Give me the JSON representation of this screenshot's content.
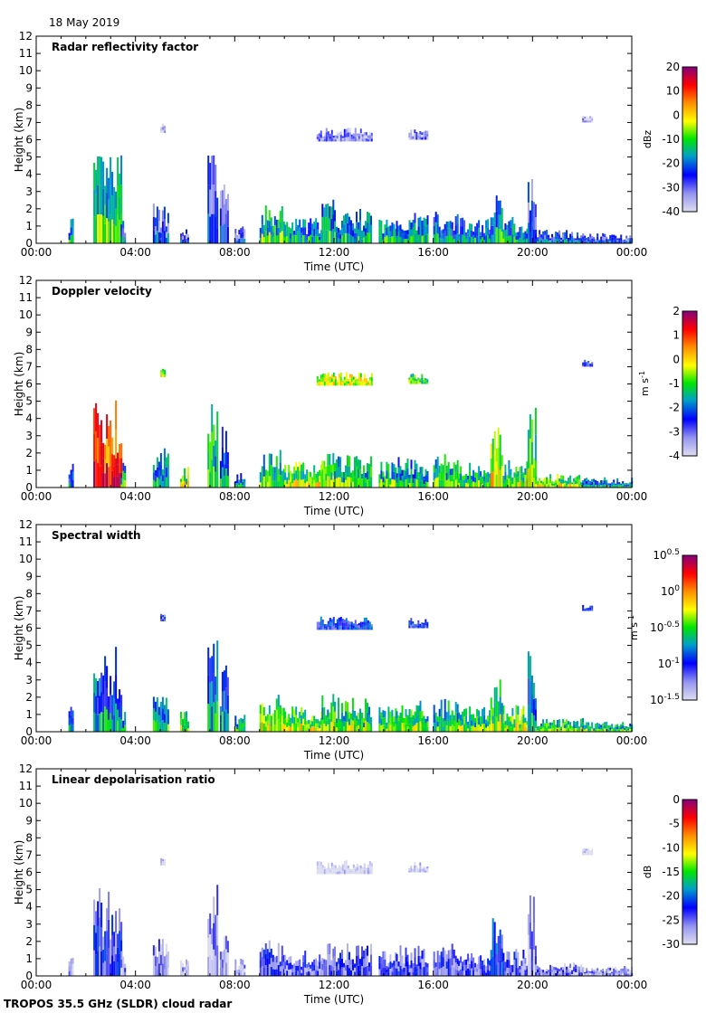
{
  "date_label": "18 May 2019",
  "footer": "TROPOS 35.5 GHz (SLDR) cloud radar",
  "chart_data": [
    {
      "type": "heatmap",
      "title": "Radar reflectivity factor",
      "xlabel": "Time (UTC)",
      "ylabel": "Height (km)",
      "xlim": [
        "00:00",
        "24:00"
      ],
      "ylim": [
        0,
        12
      ],
      "x_ticks": [
        "00:00",
        "04:00",
        "08:00",
        "12:00",
        "16:00",
        "20:00",
        "00:00"
      ],
      "y_ticks": [
        "0",
        "1",
        "2",
        "3",
        "4",
        "5",
        "6",
        "7",
        "8",
        "9",
        "10",
        "11",
        "12"
      ],
      "colorbar": {
        "unit": "dBz",
        "range": [
          -40,
          20
        ],
        "ticks": [
          "20",
          "10",
          "0",
          "-10",
          "-20",
          "-30",
          "-40"
        ]
      }
    },
    {
      "type": "heatmap",
      "title": "Doppler velocity",
      "xlabel": "Time (UTC)",
      "ylabel": "Height (km)",
      "xlim": [
        "00:00",
        "24:00"
      ],
      "ylim": [
        0,
        12
      ],
      "x_ticks": [
        "00:00",
        "04:00",
        "08:00",
        "12:00",
        "16:00",
        "20:00",
        "00:00"
      ],
      "y_ticks": [
        "0",
        "1",
        "2",
        "3",
        "4",
        "5",
        "6",
        "7",
        "8",
        "9",
        "10",
        "11",
        "12"
      ],
      "colorbar": {
        "unit": "m s-1",
        "range": [
          -4,
          2
        ],
        "ticks": [
          "2",
          "1",
          "0",
          "-1",
          "-2",
          "-3",
          "-4"
        ]
      }
    },
    {
      "type": "heatmap",
      "title": "Spectral width",
      "xlabel": "Time (UTC)",
      "ylabel": "Height (km)",
      "xlim": [
        "00:00",
        "24:00"
      ],
      "ylim": [
        0,
        12
      ],
      "x_ticks": [
        "00:00",
        "04:00",
        "08:00",
        "12:00",
        "16:00",
        "20:00",
        "00:00"
      ],
      "y_ticks": [
        "0",
        "1",
        "2",
        "3",
        "4",
        "5",
        "6",
        "7",
        "8",
        "9",
        "10",
        "11",
        "12"
      ],
      "colorbar": {
        "unit": "m s-1",
        "scale": "log",
        "range": [
          -1.5,
          0.5
        ],
        "ticks": [
          "10^0.5",
          "10^0",
          "10^-0.5",
          "10^-1",
          "10^-1.5"
        ]
      }
    },
    {
      "type": "heatmap",
      "title": "Linear depolarisation ratio",
      "xlabel": "Time (UTC)",
      "ylabel": "Height (km)",
      "xlim": [
        "00:00",
        "24:00"
      ],
      "ylim": [
        0,
        12
      ],
      "x_ticks": [
        "00:00",
        "04:00",
        "08:00",
        "12:00",
        "16:00",
        "20:00",
        "00:00"
      ],
      "y_ticks": [
        "0",
        "1",
        "2",
        "3",
        "4",
        "5",
        "6",
        "7",
        "8",
        "9",
        "10",
        "11",
        "12"
      ],
      "colorbar": {
        "unit": "dB",
        "range": [
          -30,
          0
        ],
        "ticks": [
          "0",
          "-5",
          "-10",
          "-15",
          "-20",
          "-25",
          "-30"
        ]
      }
    }
  ],
  "echo_regions": [
    {
      "start_h": 1.3,
      "end_h": 1.5,
      "base_km": 0,
      "top_km": 1.7,
      "values": [
        -20,
        -2.5,
        -1.0,
        -28
      ]
    },
    {
      "start_h": 2.3,
      "end_h": 3.4,
      "base_km": 0,
      "top_km": 5.3,
      "values": [
        -15,
        0.8,
        -0.9,
        -24
      ]
    },
    {
      "start_h": 3.4,
      "end_h": 3.6,
      "base_km": 0,
      "top_km": 1.5,
      "values": [
        -25,
        -1.5,
        -0.8,
        -27
      ]
    },
    {
      "start_h": 4.7,
      "end_h": 5.3,
      "base_km": 0,
      "top_km": 2.3,
      "values": [
        -28,
        -2.0,
        -0.8,
        -27
      ]
    },
    {
      "start_h": 5.8,
      "end_h": 6.1,
      "base_km": 0,
      "top_km": 1.2,
      "values": [
        -30,
        -1.0,
        -0.6,
        -28
      ]
    },
    {
      "start_h": 6.9,
      "end_h": 7.3,
      "base_km": 0,
      "top_km": 5.5,
      "values": [
        -30,
        -1.5,
        -0.9,
        -27
      ]
    },
    {
      "start_h": 7.4,
      "end_h": 7.7,
      "base_km": 0,
      "top_km": 4.0,
      "values": [
        -32,
        -2.0,
        -0.9,
        -28
      ]
    },
    {
      "start_h": 8.0,
      "end_h": 8.4,
      "base_km": 0,
      "top_km": 1.0,
      "values": [
        -30,
        -2.0,
        -0.7,
        -28
      ]
    },
    {
      "start_h": 9.0,
      "end_h": 10.0,
      "base_km": 0,
      "top_km": 2.2,
      "values": [
        -15,
        -1.5,
        -0.5,
        -25
      ]
    },
    {
      "start_h": 10.0,
      "end_h": 11.5,
      "base_km": 0,
      "top_km": 1.5,
      "values": [
        -20,
        -1.0,
        -0.5,
        -25
      ]
    },
    {
      "start_h": 11.5,
      "end_h": 12.0,
      "base_km": 0,
      "top_km": 2.6,
      "values": [
        -18,
        -1.2,
        -0.6,
        -25
      ]
    },
    {
      "start_h": 12.0,
      "end_h": 13.5,
      "base_km": 0,
      "top_km": 2.0,
      "values": [
        -20,
        -1.5,
        -0.6,
        -25
      ]
    },
    {
      "start_h": 13.8,
      "end_h": 14.5,
      "base_km": 0,
      "top_km": 1.5,
      "values": [
        -18,
        -1.5,
        -0.6,
        -25
      ]
    },
    {
      "start_h": 14.5,
      "end_h": 15.8,
      "base_km": 0,
      "top_km": 1.8,
      "values": [
        -20,
        -1.8,
        -0.6,
        -25
      ]
    },
    {
      "start_h": 16.0,
      "end_h": 17.0,
      "base_km": 0,
      "top_km": 2.0,
      "values": [
        -22,
        -1.5,
        -0.7,
        -25
      ]
    },
    {
      "start_h": 17.0,
      "end_h": 18.3,
      "base_km": 0,
      "top_km": 1.5,
      "values": [
        -22,
        -1.5,
        -0.6,
        -25
      ]
    },
    {
      "start_h": 18.3,
      "end_h": 18.8,
      "base_km": 0,
      "top_km": 3.5,
      "values": [
        -20,
        -0.8,
        -0.6,
        -22
      ]
    },
    {
      "start_h": 18.8,
      "end_h": 20.0,
      "base_km": 0,
      "top_km": 1.6,
      "values": [
        -20,
        -1.2,
        -0.5,
        -25
      ]
    },
    {
      "start_h": 19.8,
      "end_h": 20.1,
      "base_km": 0,
      "top_km": 4.7,
      "values": [
        -28,
        -1.0,
        -0.9,
        -27
      ]
    },
    {
      "start_h": 20.1,
      "end_h": 22.0,
      "base_km": 0,
      "top_km": 0.8,
      "values": [
        -25,
        -1.0,
        -0.6,
        -26
      ]
    },
    {
      "start_h": 22.0,
      "end_h": 24.0,
      "base_km": 0,
      "top_km": 0.6,
      "values": [
        -28,
        -2.0,
        -0.7,
        -27
      ]
    },
    {
      "start_h": 11.3,
      "end_h": 13.5,
      "base_km": 5.9,
      "top_km": 6.7,
      "values": [
        -33,
        -0.5,
        -1.0,
        -30
      ]
    },
    {
      "start_h": 15.0,
      "end_h": 15.8,
      "base_km": 6.0,
      "top_km": 6.6,
      "values": [
        -33,
        -1.0,
        -1.0,
        -30
      ]
    },
    {
      "start_h": 22.0,
      "end_h": 22.4,
      "base_km": 7.0,
      "top_km": 7.4,
      "values": [
        -35,
        -2.5,
        -1.0,
        -30
      ]
    },
    {
      "start_h": 5.0,
      "end_h": 5.15,
      "base_km": 6.4,
      "top_km": 7.0,
      "values": [
        -38,
        -0.5,
        -1.1,
        -30
      ]
    }
  ]
}
